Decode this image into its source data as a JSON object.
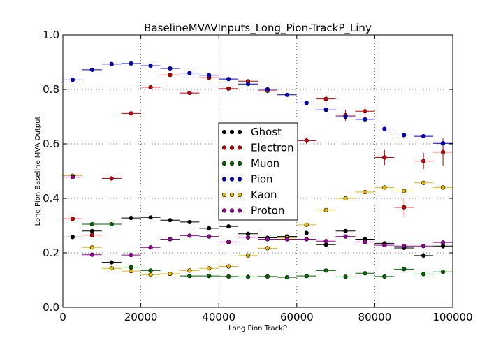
{
  "chart_data": {
    "type": "scatter",
    "title": "BaselineMVAVInputs_Long_Pion-TrackP_Liny",
    "xlabel": "Long Pion TrackP",
    "ylabel": "Long Pion Baseline MVA Output",
    "xlim": [
      0,
      100000
    ],
    "ylim": [
      0.0,
      1.0
    ],
    "xticks": [
      0,
      20000,
      40000,
      60000,
      80000,
      100000
    ],
    "xtick_labels": [
      "0",
      "20000",
      "40000",
      "60000",
      "80000",
      "100000"
    ],
    "yticks": [
      0.0,
      0.2,
      0.4,
      0.6,
      0.8,
      1.0
    ],
    "ytick_labels": [
      "0.0",
      "0.2",
      "0.4",
      "0.6",
      "0.8",
      "1.0"
    ],
    "grid": true,
    "legend_position": "center",
    "bin_width": 5000,
    "x": [
      2500,
      7500,
      12500,
      17500,
      22500,
      27500,
      32500,
      37500,
      42500,
      47500,
      52500,
      57500,
      62500,
      67500,
      72500,
      77500,
      82500,
      87500,
      92500,
      97500
    ],
    "series": [
      {
        "name": "Ghost",
        "color": "#000000",
        "values": [
          0.258,
          0.28,
          0.165,
          0.328,
          0.33,
          0.32,
          0.313,
          0.29,
          0.297,
          0.27,
          0.255,
          0.26,
          0.273,
          0.23,
          0.28,
          0.25,
          0.235,
          0.218,
          0.19,
          0.225
        ],
        "errors": [
          0.003,
          0.003,
          0.003,
          0.004,
          0.003,
          0.003,
          0.003,
          0.003,
          0.004,
          0.004,
          0.004,
          0.004,
          0.005,
          0.006,
          0.006,
          0.007,
          0.007,
          0.008,
          0.009,
          0.01
        ]
      },
      {
        "name": "Electron",
        "color": "#cc0000",
        "values": [
          0.325,
          0.265,
          0.473,
          0.712,
          0.808,
          0.853,
          0.787,
          0.843,
          0.803,
          0.83,
          0.795,
          null,
          0.612,
          0.765,
          0.705,
          0.72,
          0.55,
          0.367,
          0.537,
          0.57
        ],
        "errors": [
          0.004,
          0.004,
          0.005,
          0.005,
          0.005,
          0.005,
          0.006,
          0.006,
          0.007,
          0.007,
          0.008,
          null,
          0.012,
          0.015,
          0.02,
          0.018,
          0.028,
          0.035,
          0.03,
          0.05
        ]
      },
      {
        "name": "Muon",
        "color": "#006600",
        "values": [
          null,
          0.305,
          0.305,
          0.147,
          0.135,
          0.123,
          0.115,
          0.115,
          0.113,
          0.112,
          0.113,
          0.11,
          0.115,
          0.135,
          0.112,
          0.125,
          0.113,
          0.14,
          0.122,
          0.13
        ],
        "errors": [
          null,
          0.003,
          0.003,
          0.003,
          0.003,
          0.003,
          0.003,
          0.003,
          0.003,
          0.003,
          0.003,
          0.003,
          0.003,
          0.003,
          0.003,
          0.004,
          0.004,
          0.004,
          0.004,
          0.005
        ]
      },
      {
        "name": "Pion",
        "color": "#0000cc",
        "values": [
          0.835,
          0.872,
          0.893,
          0.895,
          0.887,
          0.877,
          0.86,
          0.852,
          0.838,
          0.82,
          0.8,
          0.78,
          0.75,
          0.725,
          0.7,
          0.69,
          0.655,
          0.632,
          0.628,
          0.602
        ],
        "errors": [
          0.002,
          0.002,
          0.002,
          0.002,
          0.002,
          0.002,
          0.002,
          0.002,
          0.002,
          0.002,
          0.002,
          0.002,
          0.002,
          0.002,
          0.003,
          0.003,
          0.003,
          0.003,
          0.003,
          0.004
        ]
      },
      {
        "name": "Kaon",
        "color": "#e6b800",
        "values": [
          0.483,
          0.22,
          0.143,
          0.133,
          0.12,
          0.123,
          0.135,
          0.143,
          0.15,
          0.19,
          0.217,
          0.255,
          0.303,
          0.357,
          0.4,
          0.423,
          0.44,
          0.427,
          0.457,
          0.44
        ],
        "errors": [
          0.003,
          0.003,
          0.003,
          0.003,
          0.003,
          0.003,
          0.003,
          0.003,
          0.003,
          0.003,
          0.003,
          0.003,
          0.003,
          0.003,
          0.003,
          0.003,
          0.003,
          0.004,
          0.004,
          0.004
        ]
      },
      {
        "name": "Proton",
        "color": "#990099",
        "values": [
          0.478,
          0.193,
          null,
          0.192,
          0.22,
          0.25,
          0.263,
          0.26,
          0.24,
          0.257,
          0.25,
          0.25,
          0.25,
          0.243,
          0.26,
          0.24,
          0.228,
          0.225,
          0.225,
          0.238
        ],
        "errors": [
          0.003,
          0.003,
          null,
          0.003,
          0.003,
          0.003,
          0.003,
          0.003,
          0.003,
          0.003,
          0.003,
          0.003,
          0.003,
          0.003,
          0.003,
          0.003,
          0.003,
          0.003,
          0.003,
          0.004
        ]
      }
    ]
  }
}
